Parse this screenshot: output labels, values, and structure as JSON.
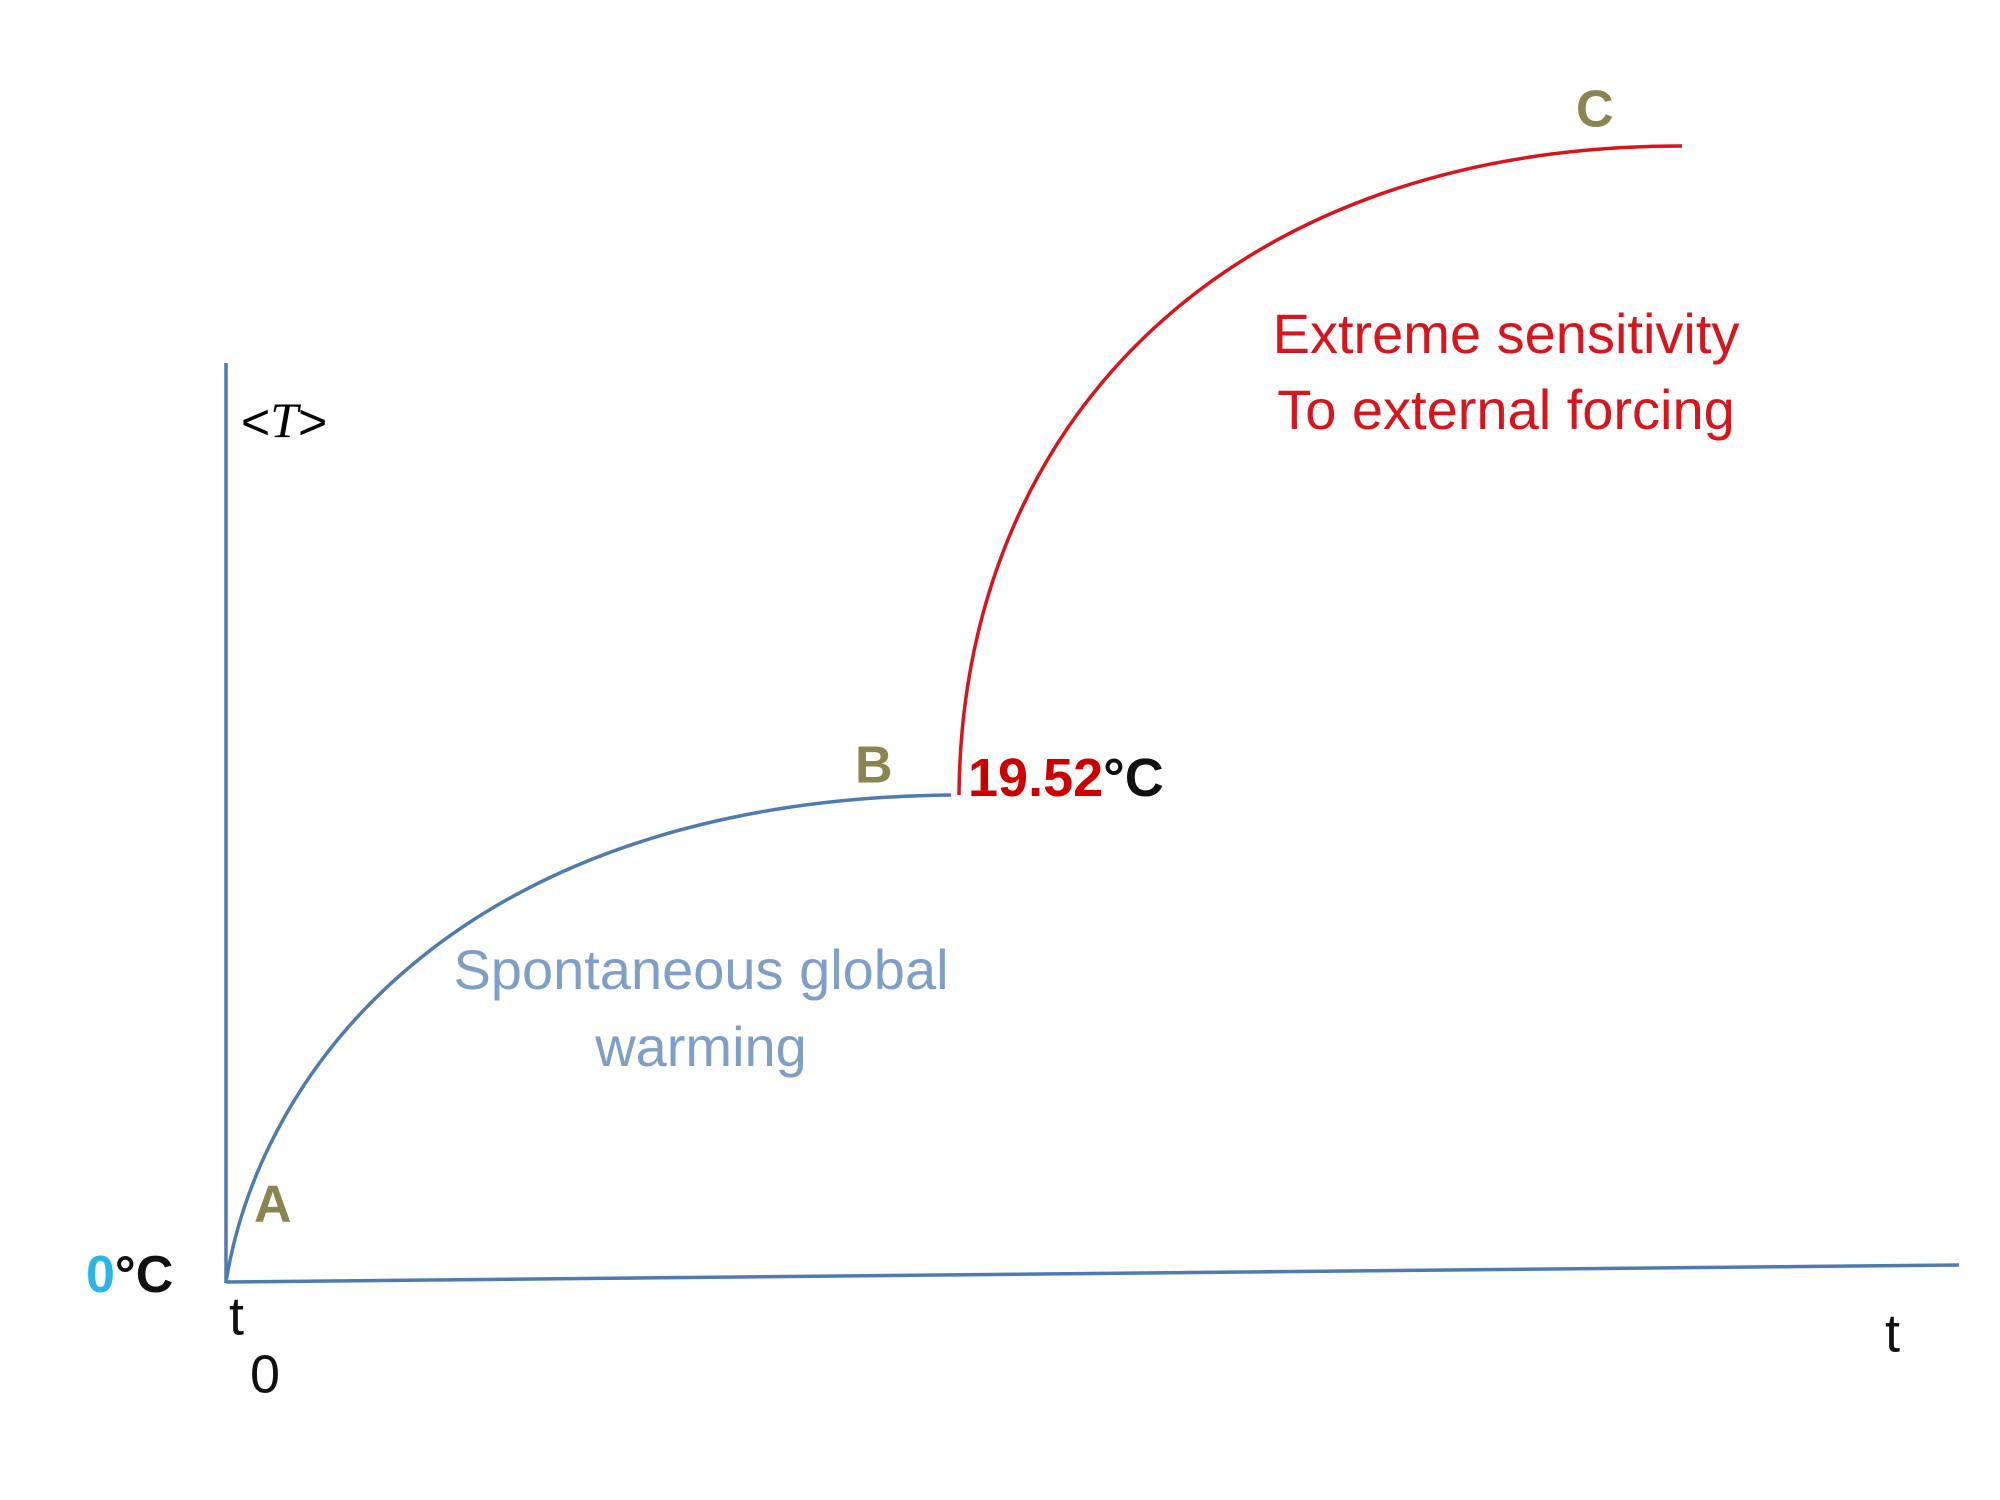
{
  "axes": {
    "y_label_open": "<",
    "y_label_var": "T",
    "y_label_close": ">",
    "origin_value": "0",
    "origin_unit": "°C",
    "x_origin_label": "t",
    "x_origin_subscript": "0",
    "x_label": "t"
  },
  "points": [
    {
      "label": "A"
    },
    {
      "label": "B",
      "value": "19.52",
      "unit": "°C"
    },
    {
      "label": "C"
    }
  ],
  "annotations": {
    "blue": [
      "Spontaneous global",
      "warming"
    ],
    "red": [
      "Extreme sensitivity",
      "To external forcing"
    ]
  }
}
